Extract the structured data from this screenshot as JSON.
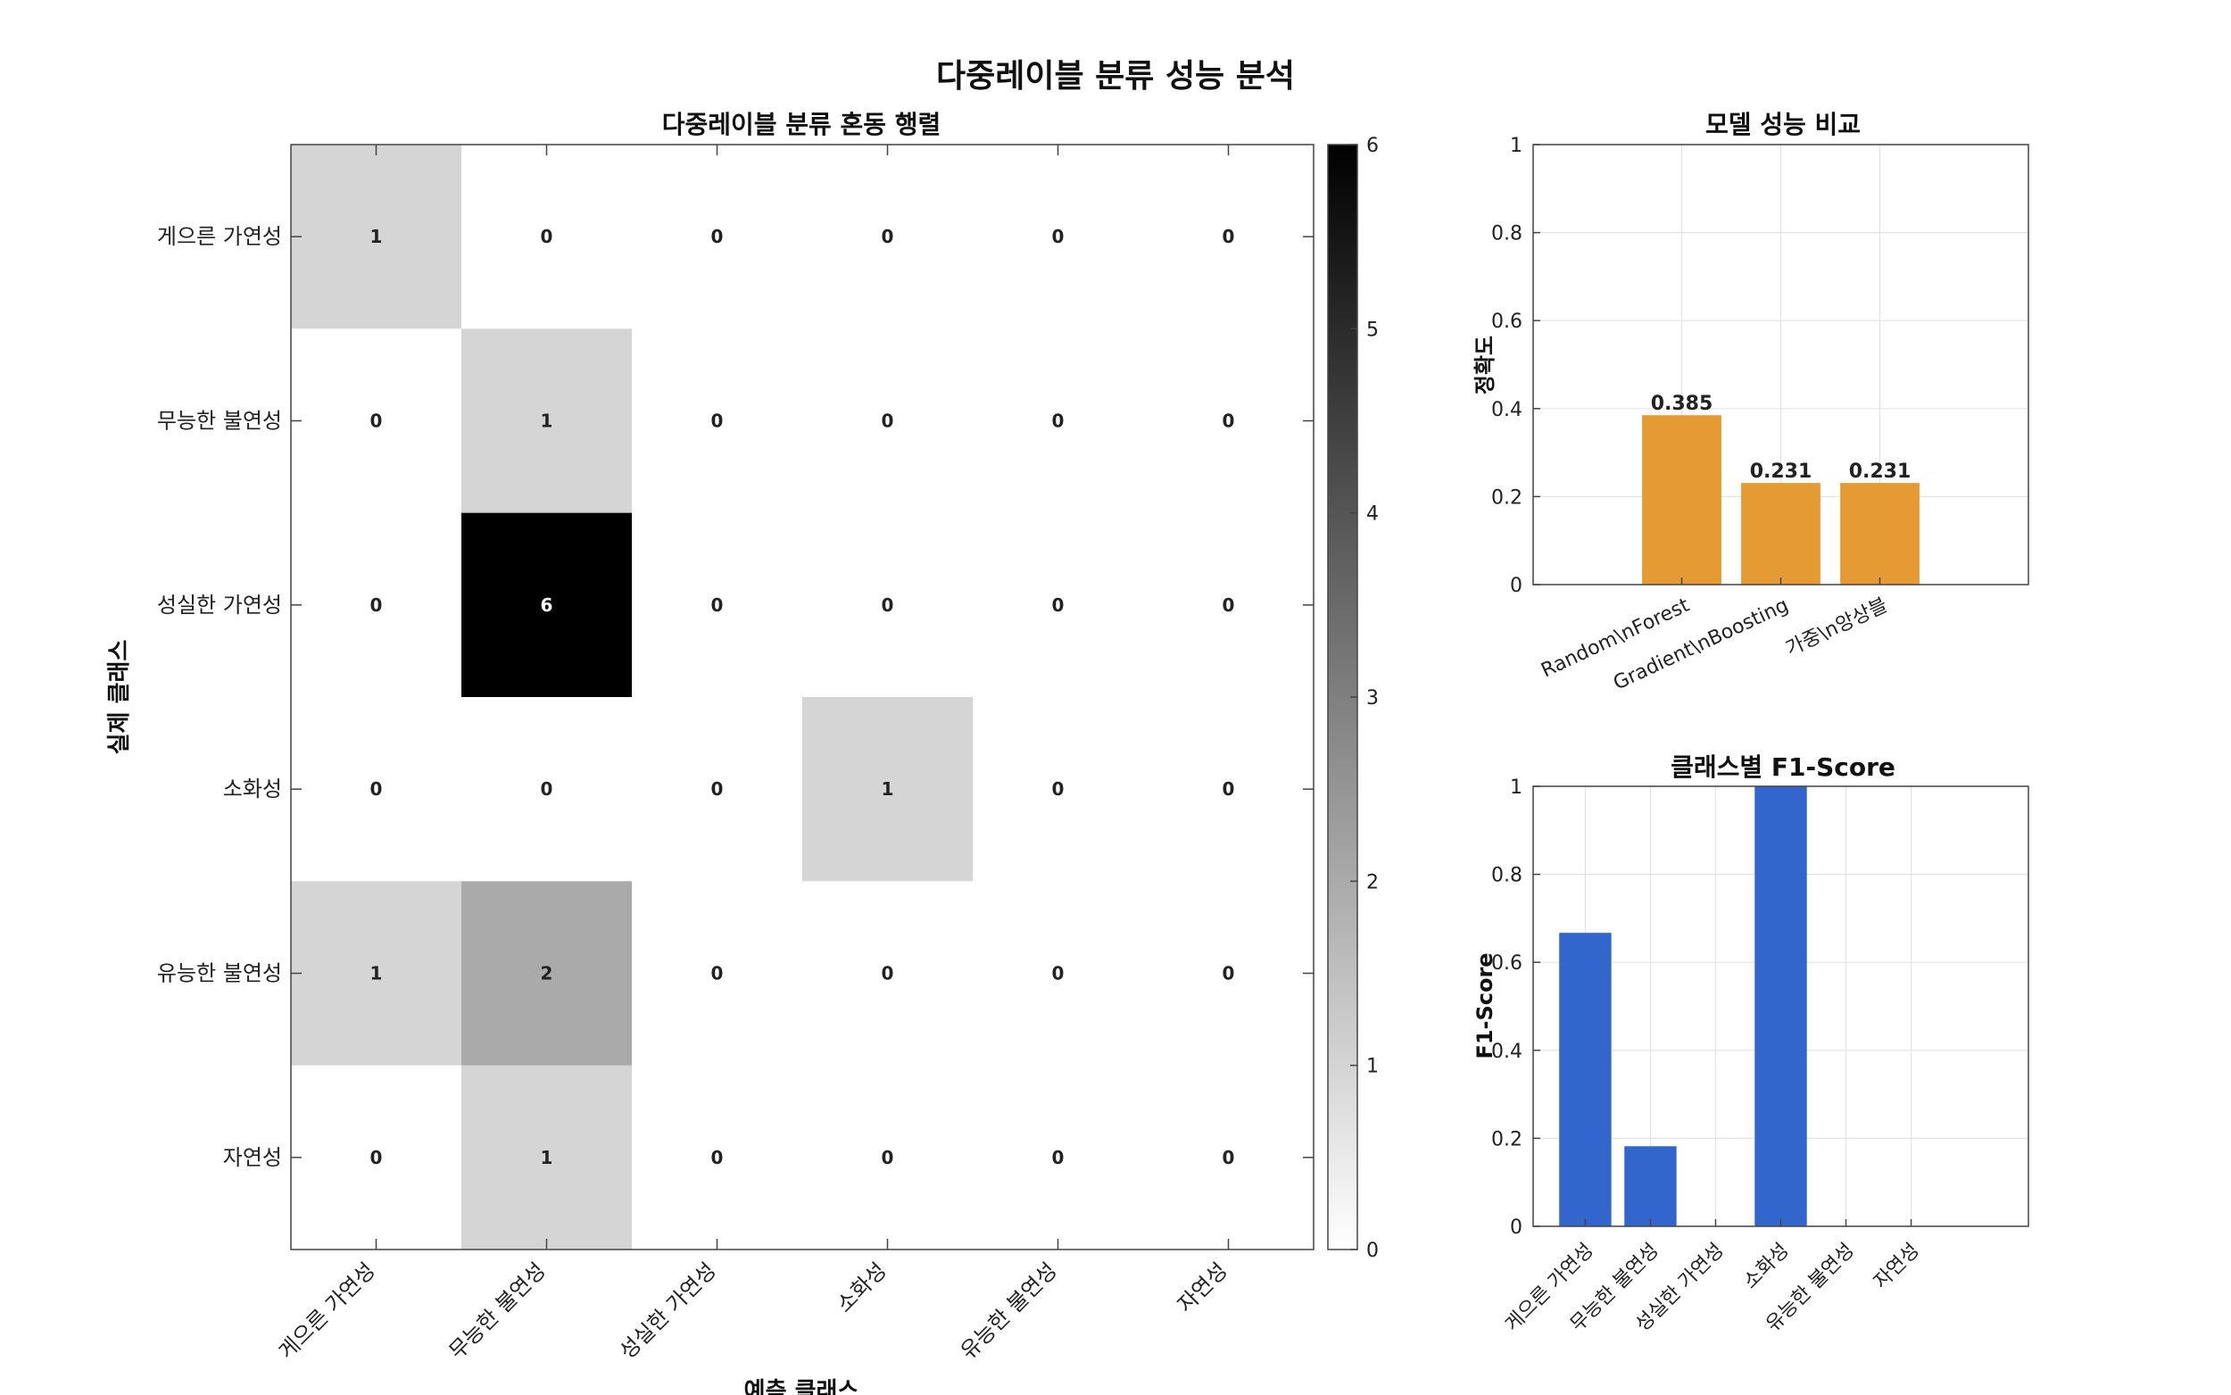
{
  "suptitle": "다중레이블 분류 성능 분석",
  "confusion": {
    "title": "다중레이블 분류 혼동 행렬",
    "xlabel": "예측 클래스",
    "ylabel": "실제 클래스",
    "classes": [
      "게으른 가연성",
      "무능한 불연성",
      "성실한 가연성",
      "소화성",
      "유능한 불연성",
      "자연성"
    ],
    "matrix": [
      [
        1,
        0,
        0,
        0,
        0,
        0
      ],
      [
        0,
        1,
        0,
        0,
        0,
        0
      ],
      [
        0,
        6,
        0,
        0,
        0,
        0
      ],
      [
        0,
        0,
        0,
        1,
        0,
        0
      ],
      [
        1,
        2,
        0,
        0,
        0,
        0
      ],
      [
        0,
        1,
        0,
        0,
        0,
        0
      ]
    ],
    "colorbar_ticks": [
      "0",
      "1",
      "2",
      "3",
      "4",
      "5",
      "6"
    ]
  },
  "chart_data": [
    {
      "type": "heatmap",
      "title": "다중레이블 분류 혼동 행렬",
      "xlabel": "예측 클래스",
      "ylabel": "실제 클래스",
      "x": [
        "게으른 가연성",
        "무능한 불연성",
        "성실한 가연성",
        "소화성",
        "유능한 불연성",
        "자연성"
      ],
      "y": [
        "게으른 가연성",
        "무능한 불연성",
        "성실한 가연성",
        "소화성",
        "유능한 불연성",
        "자연성"
      ],
      "values": [
        [
          1,
          0,
          0,
          0,
          0,
          0
        ],
        [
          0,
          1,
          0,
          0,
          0,
          0
        ],
        [
          0,
          6,
          0,
          0,
          0,
          0
        ],
        [
          0,
          0,
          0,
          1,
          0,
          0
        ],
        [
          1,
          2,
          0,
          0,
          0,
          0
        ],
        [
          0,
          1,
          0,
          0,
          0,
          0
        ]
      ],
      "colorscale": "gray (white=0, black=6)",
      "clim": [
        0,
        6
      ]
    },
    {
      "type": "bar",
      "title": "모델 성능 비교",
      "xlabel": "",
      "ylabel": "정확도",
      "categories": [
        "Random\\nForest",
        "Gradient\\nBoosting",
        "가중\\n앙상블"
      ],
      "values": [
        0.385,
        0.231,
        0.231
      ],
      "value_labels": [
        "0.385",
        "0.231",
        "0.231"
      ],
      "ylim": [
        0,
        1
      ],
      "yticks": [
        "0",
        "0.2",
        "0.4",
        "0.6",
        "0.8",
        "1"
      ],
      "grid": true,
      "color": "#e69a33"
    },
    {
      "type": "bar",
      "title": "클래스별 F1-Score",
      "xlabel": "",
      "ylabel": "F1-Score",
      "categories": [
        "게으른 가연성",
        "무능한 불연성",
        "성실한 가연성",
        "소화성",
        "유능한 불연성",
        "자연성"
      ],
      "values": [
        0.667,
        0.182,
        0,
        1.0,
        0,
        0
      ],
      "ylim": [
        0,
        1
      ],
      "yticks": [
        "0",
        "0.2",
        "0.4",
        "0.6",
        "0.8",
        "1"
      ],
      "grid": true,
      "color": "#3366cc"
    }
  ]
}
